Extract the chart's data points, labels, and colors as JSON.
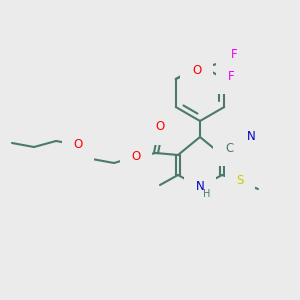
{
  "bg_color": "#ebebeb",
  "bond_color": "#4a7a6a",
  "bond_width": 1.5,
  "atom_colors": {
    "O": "#ff0000",
    "N": "#0000cc",
    "S": "#cccc00",
    "F": "#ee00ee",
    "C": "#4a7a6a",
    "H": "#4a7a6a"
  },
  "font_size": 8.5,
  "font_size_small": 7.0
}
